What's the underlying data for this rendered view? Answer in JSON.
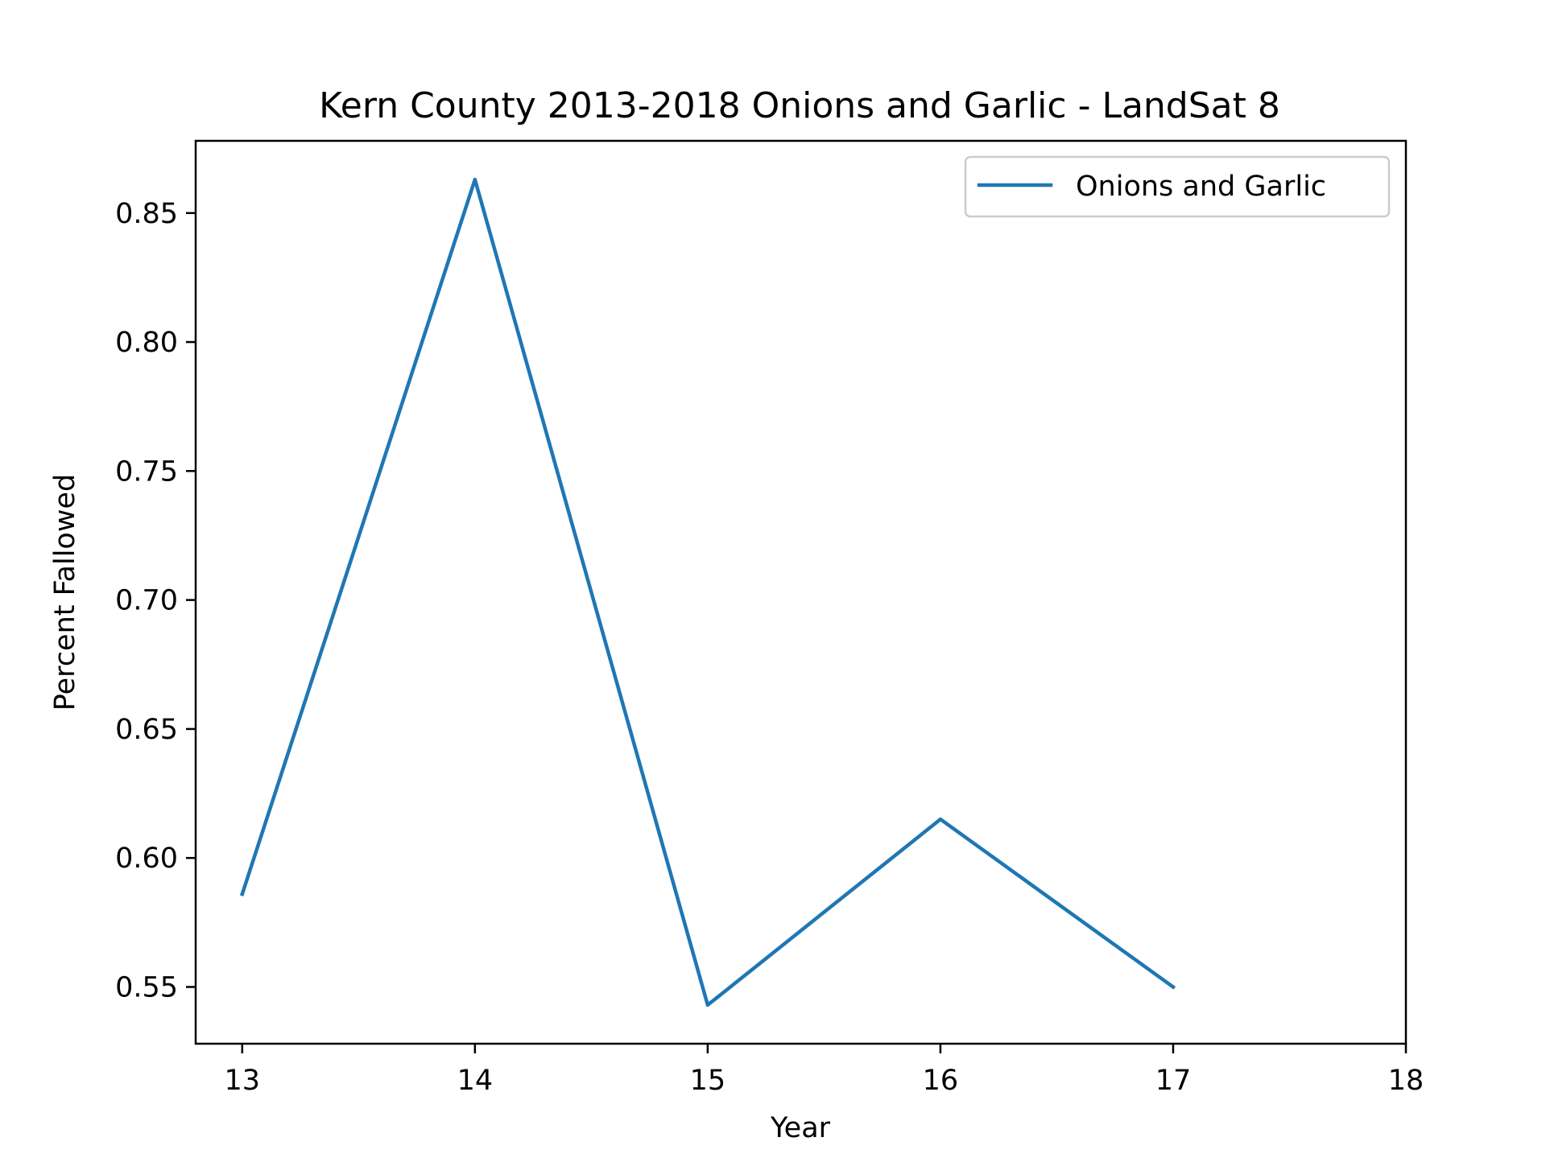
{
  "chart_data": {
    "type": "line",
    "title": "Kern County 2013-2018 Onions and Garlic - LandSat 8",
    "xlabel": "Year",
    "ylabel": "Percent Fallowed",
    "x": [
      13,
      14,
      15,
      16,
      17
    ],
    "series": [
      {
        "name": "Onions and Garlic",
        "values": [
          0.586,
          0.863,
          0.543,
          0.615,
          0.55
        ],
        "color": "#1f77b4"
      }
    ],
    "xlim": [
      12.8,
      18
    ],
    "ylim": [
      0.528,
      0.878
    ],
    "xticks": [
      13,
      14,
      15,
      16,
      17,
      18
    ],
    "xtick_labels": [
      "13",
      "14",
      "15",
      "16",
      "17",
      "18"
    ],
    "yticks": [
      0.55,
      0.6,
      0.65,
      0.7,
      0.75,
      0.8,
      0.85
    ],
    "ytick_labels": [
      "0.55",
      "0.60",
      "0.65",
      "0.70",
      "0.75",
      "0.80",
      "0.85"
    ],
    "grid": false,
    "legend_position": "top-right"
  }
}
